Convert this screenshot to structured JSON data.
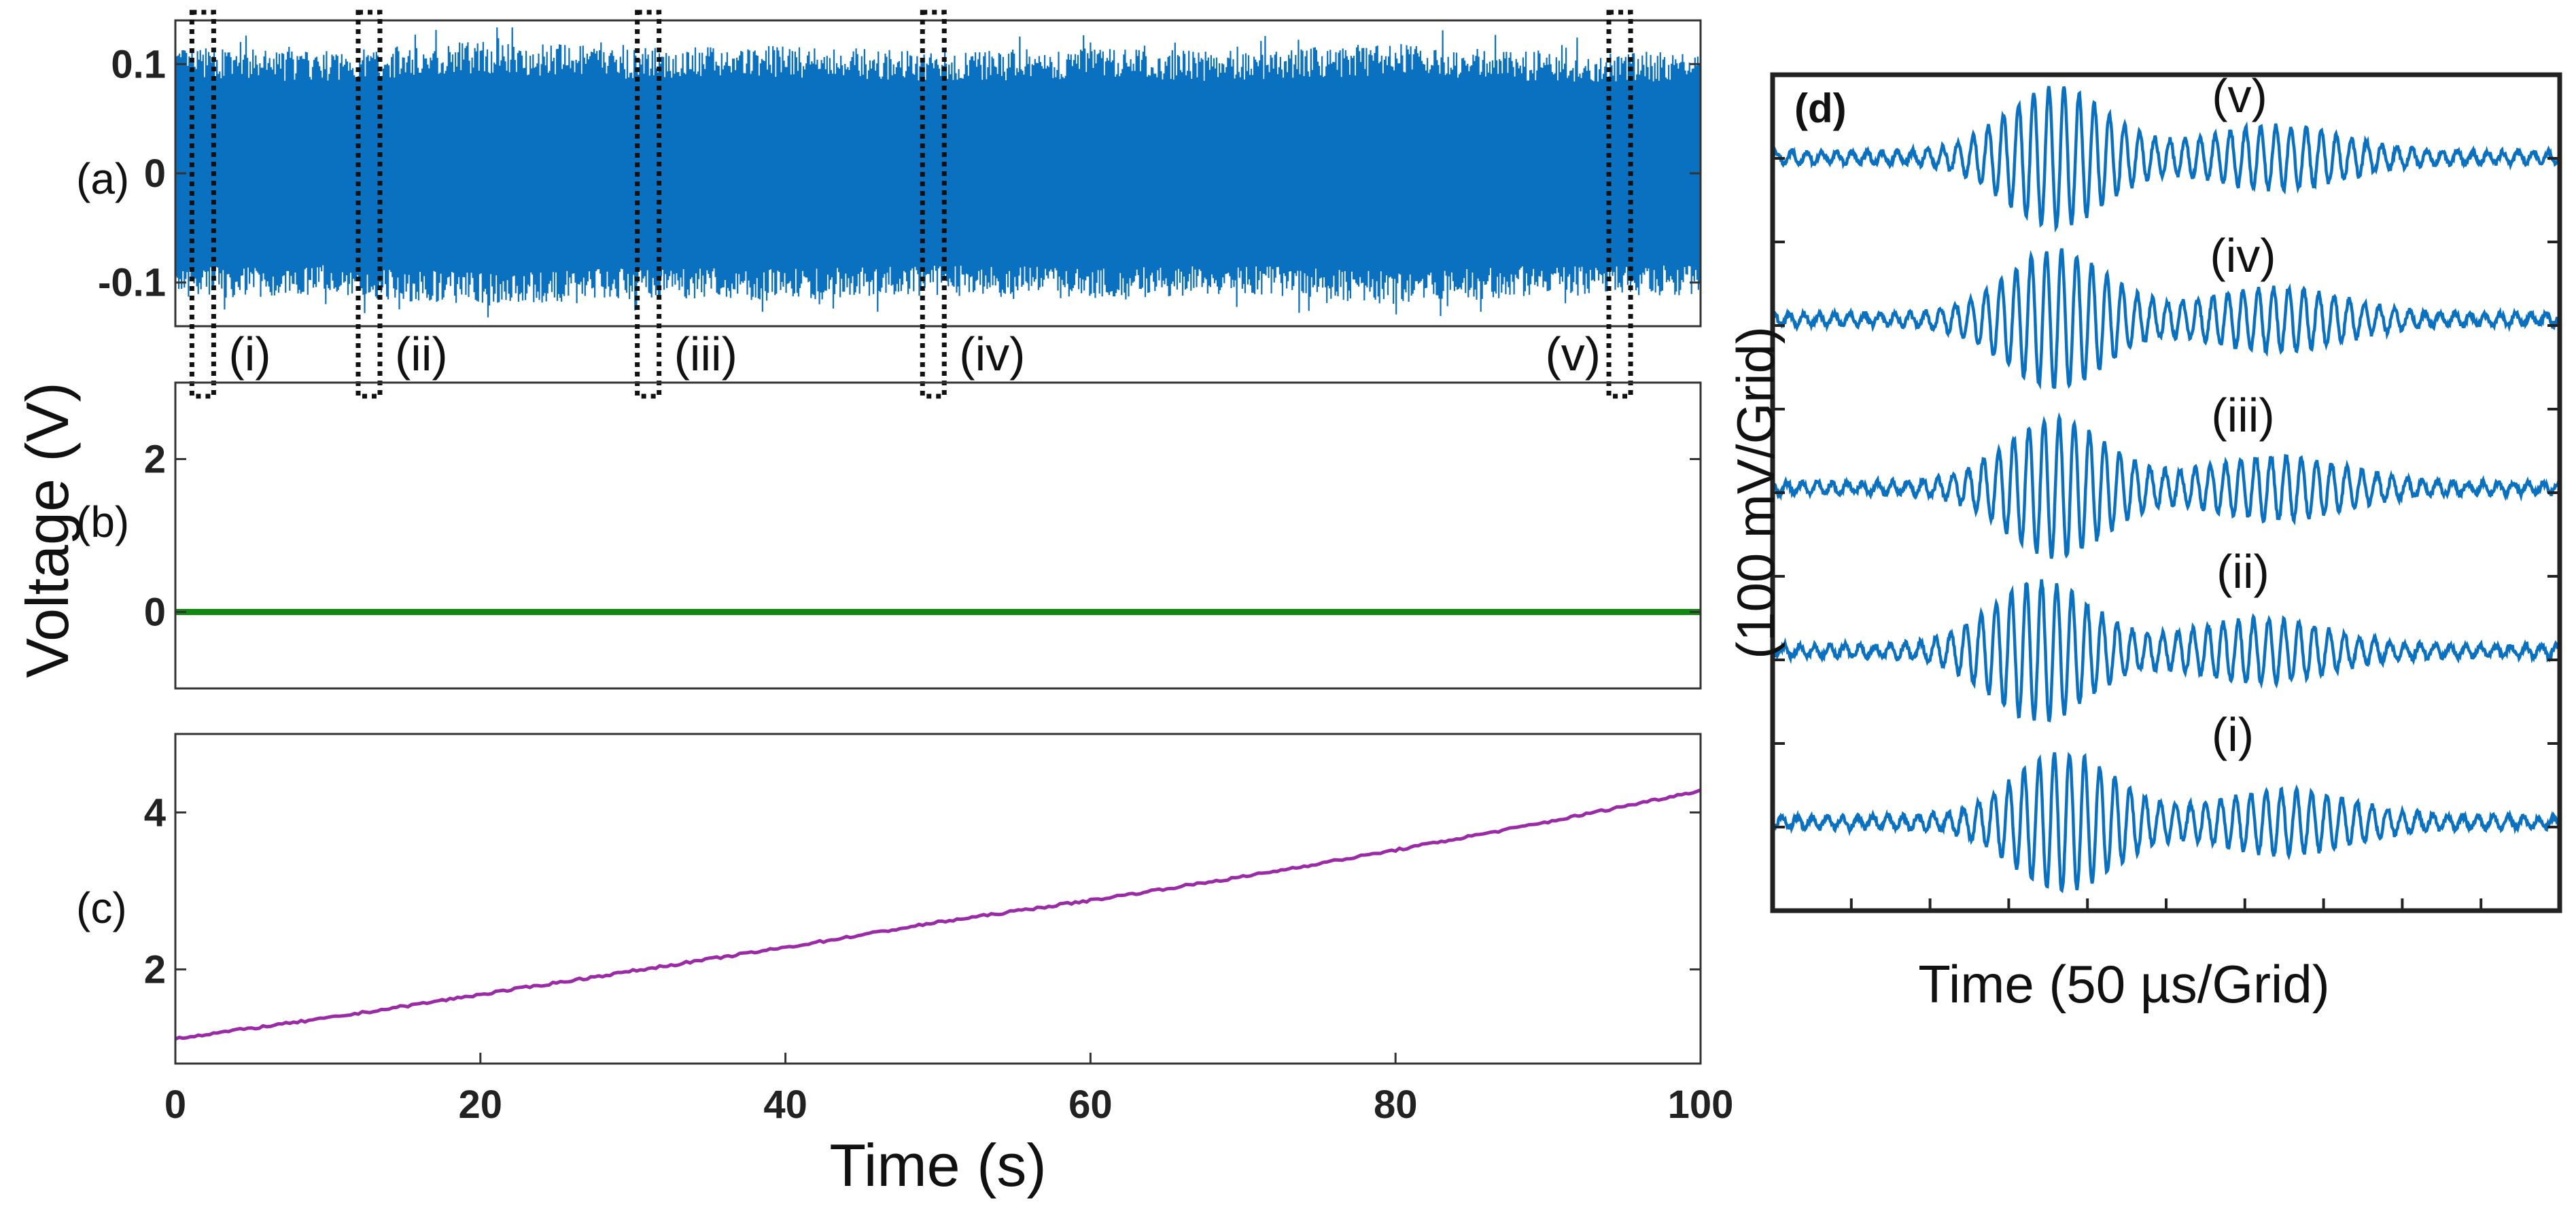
{
  "chart_data": [
    {
      "id": "a",
      "type": "line",
      "panel_label": "(a)",
      "xlim": [
        0,
        100
      ],
      "ylim": [
        -0.14,
        0.14
      ],
      "yticks": [
        {
          "value": 0.1,
          "label": "0.1"
        },
        {
          "value": 0,
          "label": "0"
        },
        {
          "value": -0.1,
          "label": "-0.1"
        }
      ],
      "grid": false,
      "color": "#0a70c0",
      "series": [
        {
          "x": [
            0,
            10,
            20,
            30,
            40,
            50,
            60,
            70,
            80,
            90,
            100
          ],
          "envelope_upper": [
            0.115,
            0.112,
            0.122,
            0.115,
            0.117,
            0.112,
            0.115,
            0.112,
            0.12,
            0.112,
            0.112
          ],
          "envelope_lower": [
            -0.115,
            -0.112,
            -0.122,
            -0.115,
            -0.117,
            -0.112,
            -0.115,
            -0.112,
            -0.12,
            -0.112,
            -0.112
          ]
        }
      ],
      "selection_windows": [
        {
          "label": "(i)",
          "x_center": 1.8
        },
        {
          "label": "(ii)",
          "x_center": 12.7
        },
        {
          "label": "(iii)",
          "x_center": 31.0
        },
        {
          "label": "(iv)",
          "x_center": 49.7
        },
        {
          "label": "(v)",
          "x_center": 94.7
        }
      ]
    },
    {
      "id": "b",
      "type": "line",
      "panel_label": "(b)",
      "xlim": [
        0,
        100
      ],
      "ylim": [
        -1,
        3
      ],
      "yticks": [
        {
          "value": 2,
          "label": "2"
        },
        {
          "value": 0,
          "label": "0"
        }
      ],
      "grid": false,
      "color": "#0f8a0f",
      "series": [
        {
          "x": [
            0,
            100
          ],
          "y": [
            0,
            0
          ]
        }
      ]
    },
    {
      "id": "c",
      "type": "line",
      "panel_label": "(c)",
      "xlim": [
        0,
        100
      ],
      "ylim": [
        0.8,
        5
      ],
      "yticks": [
        {
          "value": 4,
          "label": "4"
        },
        {
          "value": 2,
          "label": "2"
        }
      ],
      "xticks": [
        {
          "value": 0,
          "label": "0"
        },
        {
          "value": 20,
          "label": "20"
        },
        {
          "value": 40,
          "label": "40"
        },
        {
          "value": 60,
          "label": "60"
        },
        {
          "value": 80,
          "label": "80"
        },
        {
          "value": 100,
          "label": "100"
        }
      ],
      "xlabel": "Time (s)",
      "grid": false,
      "color": "#9a2aa6",
      "series": [
        {
          "x": [
            0,
            10,
            20,
            30,
            40,
            50,
            60,
            70,
            80,
            90,
            100
          ],
          "y": [
            1.12,
            1.38,
            1.68,
            1.98,
            2.28,
            2.6,
            2.88,
            3.18,
            3.52,
            3.88,
            4.28
          ]
        }
      ]
    },
    {
      "id": "d",
      "type": "line",
      "panel_label": "(d)",
      "xlabel": "Time (50 µs/Grid)",
      "ylabel": "(100 mV/Grid)",
      "grid": false,
      "color": "#0a70c0",
      "series": [
        {
          "label": "(v)",
          "peak_position": 0.36
        },
        {
          "label": "(iv)",
          "peak_position": 0.36
        },
        {
          "label": "(iii)",
          "peak_position": 0.36
        },
        {
          "label": "(ii)",
          "peak_position": 0.34
        },
        {
          "label": "(i)",
          "peak_position": 0.37
        }
      ]
    }
  ],
  "shared_ylabel": "Voltage  (V)"
}
